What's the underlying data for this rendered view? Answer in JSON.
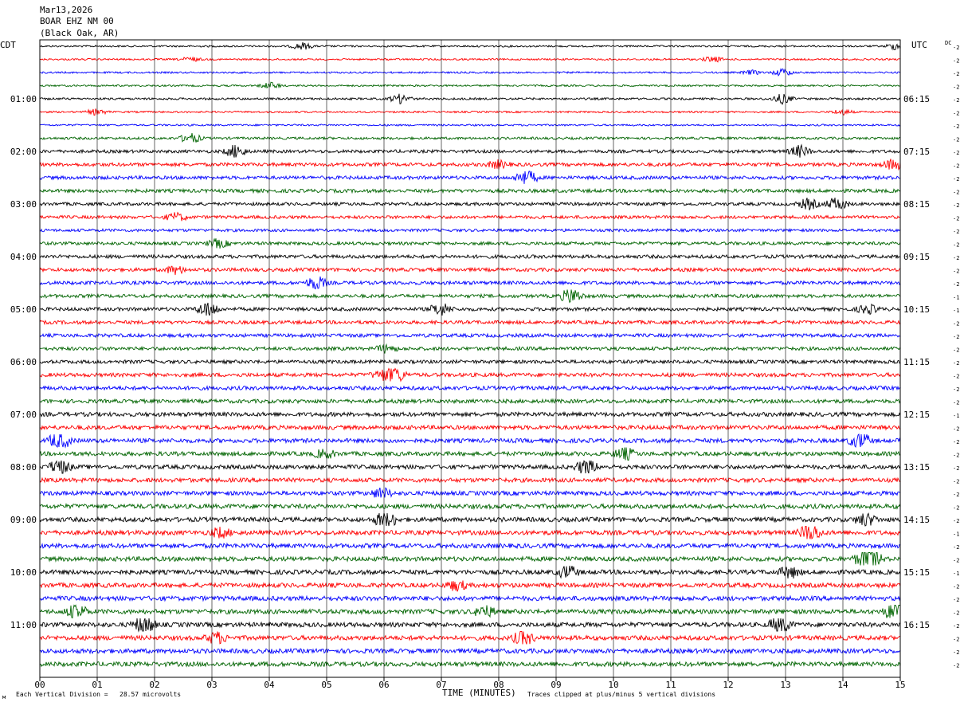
{
  "header": {
    "date": "Mar13,2026",
    "station": "BOAR EHZ NM 00",
    "location": "(Black Oak, AR)"
  },
  "left_zone_label": "CDT",
  "right_zone_label": "UTC",
  "dc_label": "DC",
  "footer": {
    "scale_note": "Each Vertical Division =   28.57 microvolts",
    "xlabel": "TIME (MINUTES)",
    "clip_note": "Traces clipped at plus/minus 5 vertical divisions"
  },
  "colors": {
    "trace_cycle": [
      "#000000",
      "#ff0000",
      "#0000ff",
      "#006400"
    ],
    "grid": "#000000",
    "background": "#ffffff"
  },
  "chart_data": {
    "type": "line",
    "title": "BOAR EHZ NM 00 (Black Oak, AR)",
    "xlabel": "TIME (MINUTES)",
    "xlim": [
      0,
      15
    ],
    "x_ticks": [
      "00",
      "01",
      "02",
      "03",
      "04",
      "05",
      "06",
      "07",
      "08",
      "09",
      "10",
      "11",
      "12",
      "13",
      "14",
      "15"
    ],
    "rows": 48,
    "minutes_per_row": 15,
    "left_hour_labels": [
      "01:00",
      "02:00",
      "03:00",
      "04:00",
      "05:00",
      "06:00",
      "07:00",
      "08:00",
      "09:00",
      "10:00",
      "11:00"
    ],
    "right_hour_labels": [
      "06:15",
      "07:15",
      "08:15",
      "09:15",
      "10:15",
      "11:15",
      "12:15",
      "13:15",
      "14:15",
      "15:15",
      "16:15"
    ],
    "row_dc_values": [
      -2,
      -2,
      -2,
      -2,
      -2,
      -2,
      -2,
      -2,
      -2,
      -2,
      -2,
      -2,
      -2,
      -2,
      -2,
      -2,
      -2,
      -2,
      -2,
      -1,
      -1,
      -2,
      -2,
      -2,
      -2,
      -2,
      -2,
      -2,
      -1,
      -2,
      -2,
      -2,
      -2,
      -2,
      -2,
      -2,
      -2,
      -1,
      -2,
      -2,
      -1,
      -2,
      -2,
      -2,
      -2,
      -2,
      -2,
      -2
    ],
    "row_amplitude_divisions": [
      0.5,
      0.5,
      0.5,
      0.5,
      0.6,
      0.5,
      0.5,
      0.7,
      0.9,
      1.0,
      1.0,
      1.0,
      0.9,
      0.9,
      0.8,
      0.9,
      1.0,
      1.0,
      1.0,
      1.0,
      1.0,
      1.0,
      1.0,
      1.0,
      1.0,
      1.1,
      1.1,
      1.1,
      1.2,
      1.2,
      1.2,
      1.2,
      1.2,
      1.2,
      1.2,
      1.3,
      1.3,
      1.3,
      1.3,
      1.3,
      1.3,
      1.3,
      1.3,
      1.3,
      1.3,
      1.3,
      1.3,
      1.3
    ]
  }
}
